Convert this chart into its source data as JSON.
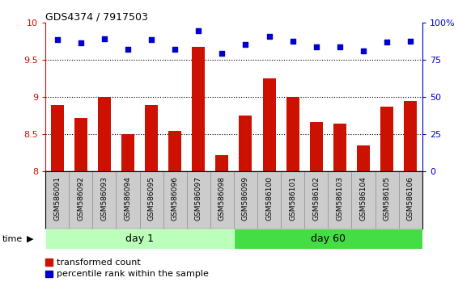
{
  "title": "GDS4374 / 7917503",
  "samples": [
    "GSM586091",
    "GSM586092",
    "GSM586093",
    "GSM586094",
    "GSM586095",
    "GSM586096",
    "GSM586097",
    "GSM586098",
    "GSM586099",
    "GSM586100",
    "GSM586101",
    "GSM586102",
    "GSM586103",
    "GSM586104",
    "GSM586105",
    "GSM586106"
  ],
  "bar_values": [
    8.9,
    8.72,
    9.0,
    8.5,
    8.9,
    8.55,
    9.68,
    8.22,
    8.75,
    9.25,
    9.0,
    8.67,
    8.65,
    8.35,
    8.87,
    8.95
  ],
  "percentile_values": [
    9.78,
    9.73,
    9.79,
    9.65,
    9.78,
    9.64,
    9.89,
    9.59,
    9.71,
    9.82,
    9.75,
    9.68,
    9.68,
    9.62,
    9.74,
    9.75
  ],
  "bar_color": "#cc1100",
  "percentile_color": "#0000cc",
  "ylim_left": [
    8.0,
    10.0
  ],
  "ylim_right": [
    0,
    100
  ],
  "yticks_left": [
    8.0,
    8.5,
    9.0,
    9.5,
    10.0
  ],
  "ytick_labels_left": [
    "8",
    "8.5",
    "9",
    "9.5",
    "10"
  ],
  "yticks_right": [
    0,
    25,
    50,
    75,
    100
  ],
  "ytick_labels_right": [
    "0",
    "25",
    "50",
    "75",
    "100%"
  ],
  "grid_values": [
    8.5,
    9.0,
    9.5
  ],
  "day1_samples": 8,
  "day60_samples": 8,
  "day1_label": "day 1",
  "day60_label": "day 60",
  "day1_color": "#bbffbb",
  "day60_color": "#44dd44",
  "time_label": "time",
  "legend_bar_label": "transformed count",
  "legend_pct_label": "percentile rank within the sample",
  "bar_bottom": 8.0
}
